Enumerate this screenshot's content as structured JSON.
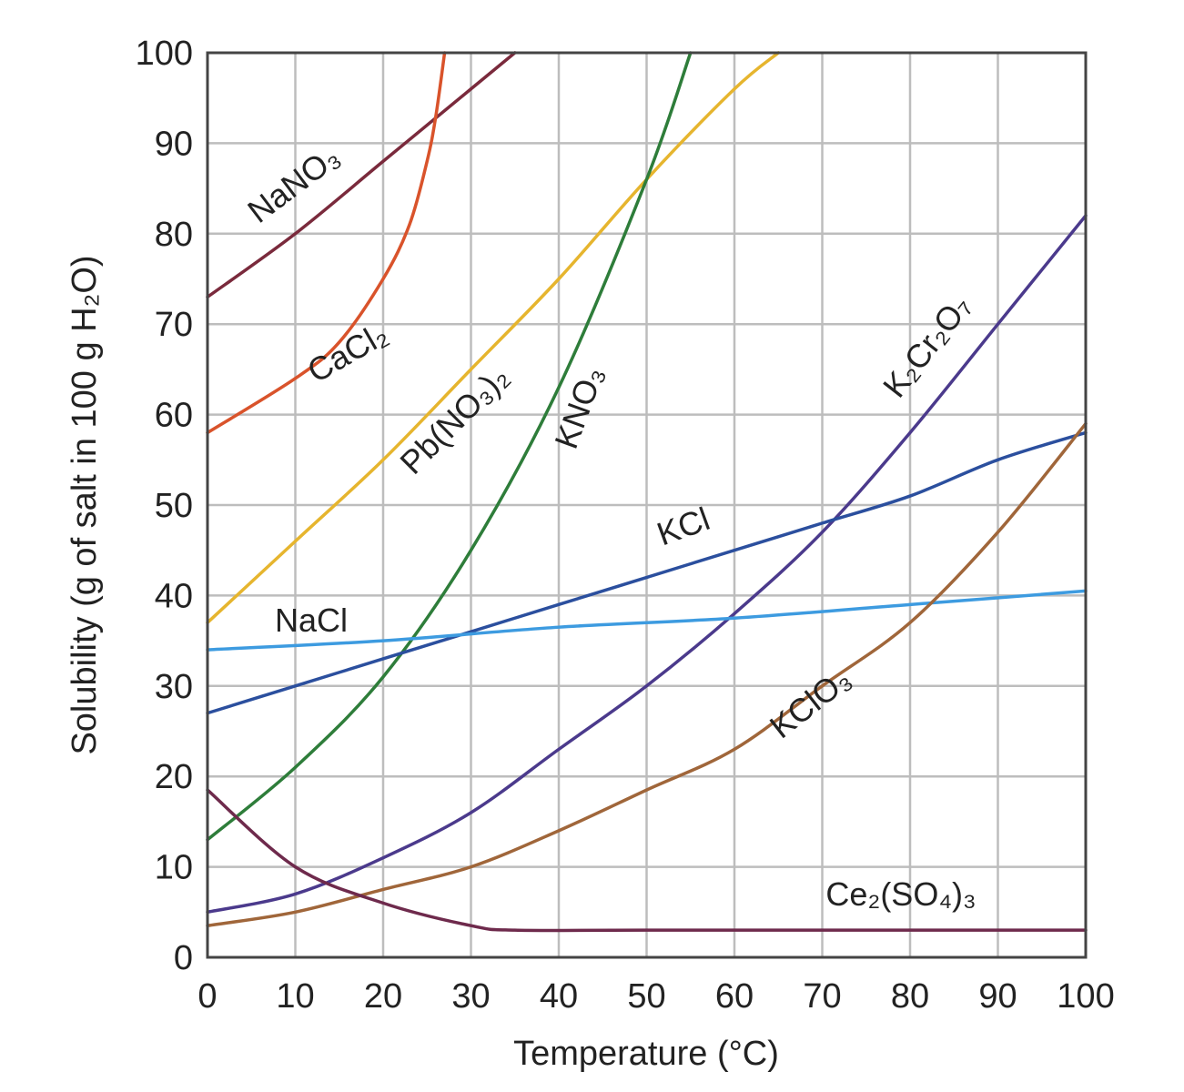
{
  "chart_data": {
    "type": "line",
    "title": "",
    "xlabel": "Temperature (°C)",
    "ylabel": "Solubility (g of salt in 100 g H₂O)",
    "xlim": [
      0,
      100
    ],
    "ylim": [
      0,
      100
    ],
    "xticks": [
      "0",
      "10",
      "20",
      "30",
      "40",
      "50",
      "60",
      "70",
      "80",
      "90",
      "100"
    ],
    "yticks": [
      "0",
      "10",
      "20",
      "30",
      "40",
      "50",
      "60",
      "70",
      "80",
      "90",
      "100"
    ],
    "grid": true,
    "series": [
      {
        "name": "NaNO₃",
        "color": "#7a2a3c",
        "x": [
          0,
          10,
          20,
          30,
          35
        ],
        "y": [
          73,
          80,
          88,
          96,
          100
        ]
      },
      {
        "name": "CaCl₂",
        "color": "#d9532b",
        "x": [
          0,
          10,
          15,
          20,
          23,
          25,
          26,
          27
        ],
        "y": [
          58,
          64,
          68,
          75,
          81,
          88,
          93,
          100
        ]
      },
      {
        "name": "Pb(NO₃)₂",
        "color": "#e6b52e",
        "x": [
          0,
          10,
          20,
          30,
          40,
          50,
          60,
          65
        ],
        "y": [
          37,
          46,
          55,
          65,
          75,
          86,
          96,
          100
        ]
      },
      {
        "name": "KNO₃",
        "color": "#2e7d3a",
        "x": [
          0,
          10,
          20,
          30,
          40,
          50,
          55
        ],
        "y": [
          13,
          21,
          31,
          45,
          63,
          86,
          100
        ]
      },
      {
        "name": "K₂Cr₂O₇",
        "color": "#4b3a8c",
        "x": [
          0,
          10,
          20,
          30,
          40,
          50,
          60,
          70,
          80,
          90,
          100
        ],
        "y": [
          5,
          7,
          11,
          16,
          23,
          30,
          38,
          47,
          58,
          70,
          82
        ]
      },
      {
        "name": "KCl",
        "color": "#2b4f9e",
        "x": [
          0,
          10,
          20,
          30,
          40,
          50,
          60,
          70,
          80,
          90,
          100
        ],
        "y": [
          27,
          30,
          33,
          36,
          39,
          42,
          45,
          48,
          51,
          55,
          58
        ]
      },
      {
        "name": "NaCl",
        "color": "#3d9be0",
        "x": [
          0,
          20,
          40,
          60,
          80,
          100
        ],
        "y": [
          34,
          35,
          36.5,
          37.5,
          39,
          40.5
        ]
      },
      {
        "name": "KClO₃",
        "color": "#a0663a",
        "x": [
          0,
          10,
          20,
          30,
          40,
          50,
          60,
          70,
          80,
          90,
          100
        ],
        "y": [
          3.5,
          5,
          7.5,
          10,
          14,
          18.5,
          23,
          30,
          37,
          47,
          59
        ]
      },
      {
        "name": "Ce₂(SO₄)₃",
        "color": "#6e2a4c",
        "x": [
          0,
          10,
          20,
          30,
          35,
          50,
          100
        ],
        "y": [
          18.5,
          10,
          6,
          3.5,
          3,
          3,
          3
        ]
      }
    ]
  }
}
